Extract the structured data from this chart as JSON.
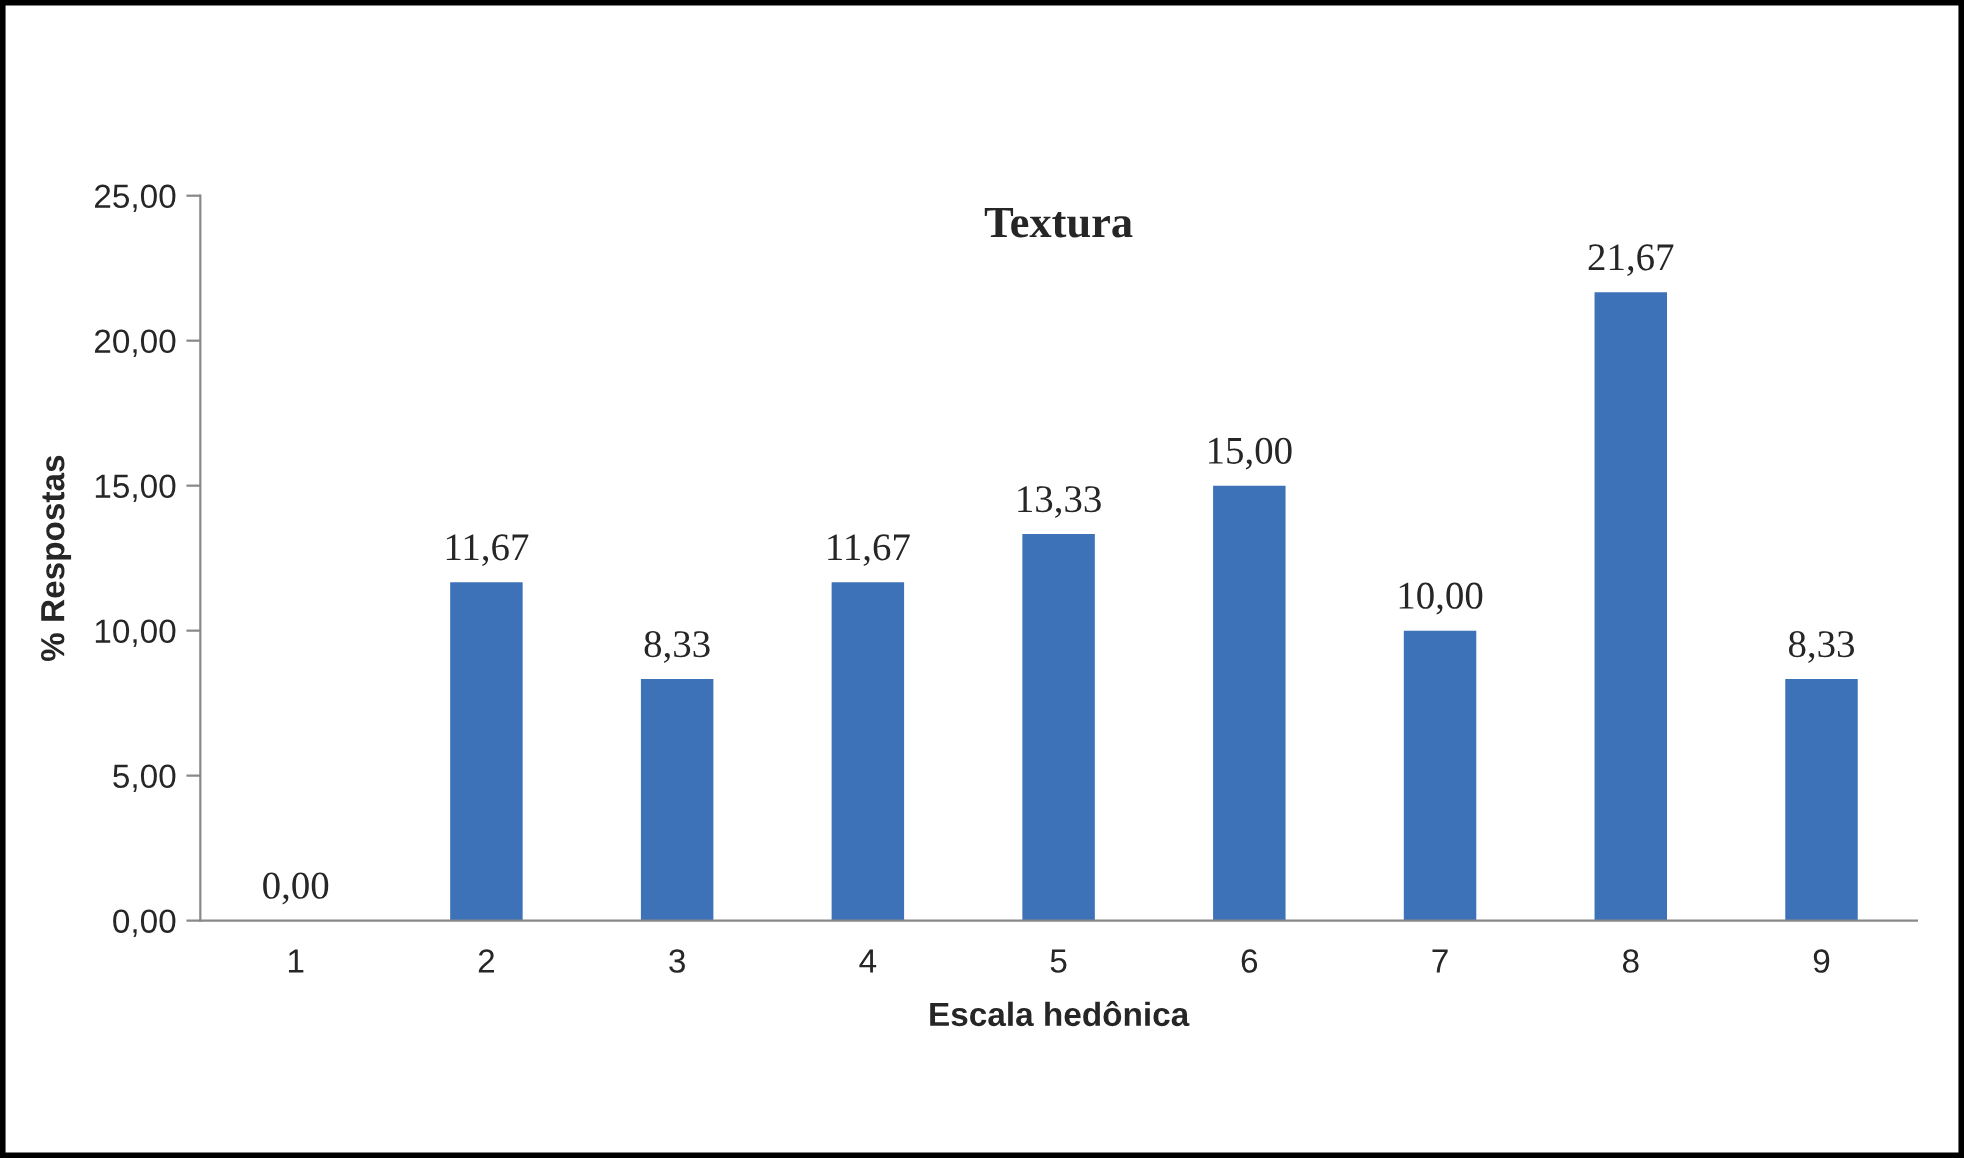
{
  "chart_data": {
    "type": "bar",
    "title": "Textura",
    "xlabel": "Escala hedônica",
    "ylabel": "% Respostas",
    "categories": [
      "1",
      "2",
      "3",
      "4",
      "5",
      "6",
      "7",
      "8",
      "9"
    ],
    "values": [
      0.0,
      11.67,
      8.33,
      11.67,
      13.33,
      15.0,
      10.0,
      21.67,
      8.33
    ],
    "value_labels": [
      "0,00",
      "11,67",
      "8,33",
      "11,67",
      "13,33",
      "15,00",
      "10,00",
      "21,67",
      "8,33"
    ],
    "color": "#3d72b8",
    "ylim": [
      0,
      25
    ],
    "yticks": [
      {
        "value": 0,
        "label": "0,00"
      },
      {
        "value": 5,
        "label": "5,00"
      },
      {
        "value": 10,
        "label": "10,00"
      },
      {
        "value": 15,
        "label": "15,00"
      },
      {
        "value": 20,
        "label": "20,00"
      },
      {
        "value": 25,
        "label": "25,00"
      }
    ],
    "grid": false,
    "legend": false
  }
}
